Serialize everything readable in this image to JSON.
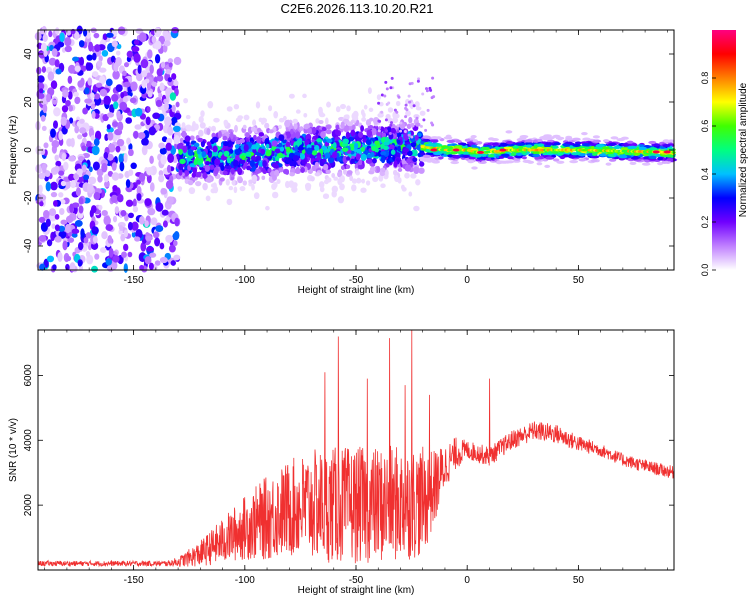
{
  "title": "C2E6.2026.113.10.20.R21",
  "chart_data": [
    {
      "type": "heatmap",
      "panel": "spectrogram",
      "xlabel": "Height of straight line (km)",
      "ylabel": "Frequency (Hz)",
      "xlim": [
        -193,
        93
      ],
      "ylim": [
        -50,
        50
      ],
      "x_ticks": [
        -150,
        -100,
        -50,
        0,
        50
      ],
      "x_tick_labels": [
        "-150",
        "-100",
        "-50",
        "0",
        "50"
      ],
      "y_ticks": [
        -40,
        -20,
        0,
        20,
        40
      ],
      "y_tick_labels": [
        "-40",
        "-20",
        "0",
        "20",
        "40"
      ],
      "colorbar": {
        "label": "Normalized spectral amplitude",
        "range": [
          0,
          1
        ],
        "ticks": [
          0,
          0.2,
          0.4,
          0.6,
          0.8
        ],
        "tick_labels": [
          "0.0",
          "0.2",
          "0.4",
          "0.6",
          "0.8"
        ],
        "colors": [
          "#ffffff",
          "#c080ff",
          "#7000ff",
          "#0000ff",
          "#00c0ff",
          "#00ff80",
          "#40ff00",
          "#ffff00",
          "#ff8000",
          "#ff0000",
          "#ff0080"
        ]
      },
      "regions": [
        {
          "x_range": [
            -193,
            -130
          ],
          "freq_center": 0,
          "freq_spread": 50,
          "amplitude": 0.2,
          "description": "noise"
        },
        {
          "x_range": [
            -130,
            -20
          ],
          "freq_center": 0,
          "freq_spread": 6,
          "amplitude": 0.45
        },
        {
          "x_range": [
            -20,
            93
          ],
          "freq_center": 0,
          "freq_spread": 2,
          "amplitude": 0.7
        }
      ],
      "ridge": {
        "x": [
          -130,
          -100,
          -75,
          -50,
          -25,
          -10,
          0,
          5,
          8,
          20,
          50,
          93
        ],
        "freq": [
          -3,
          -2,
          0,
          1,
          2,
          0,
          0,
          -1,
          -1,
          0,
          0,
          -1
        ]
      }
    },
    {
      "type": "line",
      "panel": "snr",
      "xlabel": "Height of straight line (km)",
      "ylabel": "SNR (10 * v/v)",
      "xlim": [
        -193,
        93
      ],
      "ylim": [
        0,
        7400
      ],
      "x_ticks": [
        -150,
        -100,
        -50,
        0,
        50
      ],
      "x_tick_labels": [
        "-150",
        "-100",
        "-50",
        "0",
        "50"
      ],
      "y_ticks": [
        2000,
        4000,
        6000
      ],
      "y_tick_labels": [
        "2000",
        "4000",
        "6000"
      ],
      "series": [
        {
          "name": "SNR",
          "color": "#f03030",
          "envelope_x": [
            -193,
            -150,
            -135,
            -130,
            -120,
            -110,
            -100,
            -90,
            -80,
            -70,
            -60,
            -50,
            -40,
            -30,
            -20,
            -15,
            -10,
            -5,
            0,
            5,
            10,
            20,
            30,
            40,
            50,
            60,
            70,
            80,
            93
          ],
          "mean_y": [
            200,
            200,
            200,
            250,
            500,
            900,
            1300,
            1600,
            1900,
            2000,
            2000,
            2000,
            2000,
            2050,
            2100,
            2500,
            3200,
            3600,
            3700,
            3600,
            3500,
            4000,
            4300,
            4200,
            3900,
            3700,
            3400,
            3200,
            3000
          ],
          "spread_y": [
            80,
            80,
            80,
            150,
            400,
            700,
            1000,
            1300,
            1500,
            1700,
            1800,
            1800,
            1800,
            1800,
            1700,
            1200,
            700,
            500,
            300,
            300,
            300,
            300,
            300,
            300,
            250,
            200,
            200,
            200,
            200
          ],
          "peaks": [
            {
              "x": -58,
              "y": 7200
            },
            {
              "x": -35,
              "y": 7150
            },
            {
              "x": -25,
              "y": 7400
            },
            {
              "x": -64,
              "y": 6100
            },
            {
              "x": -45,
              "y": 5900
            },
            {
              "x": -28,
              "y": 5700
            },
            {
              "x": -17,
              "y": 5400
            },
            {
              "x": 10,
              "y": 5900
            }
          ]
        }
      ]
    }
  ]
}
